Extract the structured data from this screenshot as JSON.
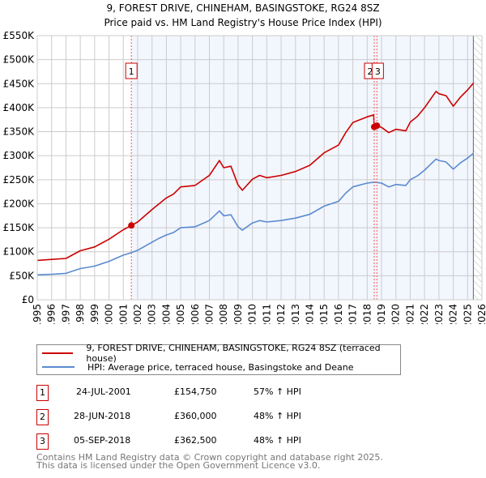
{
  "chart_data": {
    "type": "line",
    "title": "9, FOREST DRIVE, CHINEHAM, BASINGSTOKE, RG24 8SZ",
    "subtitle": "Price paid vs. HM Land Registry's House Price Index (HPI)",
    "xlim": [
      1995,
      2026
    ],
    "ylim": [
      0,
      550000
    ],
    "x_ticks": [
      "1995",
      "1996",
      "1997",
      "1998",
      "1999",
      "2000",
      "2001",
      "2002",
      "2003",
      "2004",
      "2005",
      "2006",
      "2007",
      "2008",
      "2009",
      "2010",
      "2011",
      "2012",
      "2013",
      "2014",
      "2015",
      "2016",
      "2017",
      "2018",
      "2019",
      "2020",
      "2021",
      "2022",
      "2023",
      "2024",
      "2025",
      "2026"
    ],
    "y_ticks": [
      {
        "v": 0,
        "label": "£0"
      },
      {
        "v": 50000,
        "label": "£50K"
      },
      {
        "v": 100000,
        "label": "£100K"
      },
      {
        "v": 150000,
        "label": "£150K"
      },
      {
        "v": 200000,
        "label": "£200K"
      },
      {
        "v": 250000,
        "label": "£250K"
      },
      {
        "v": 300000,
        "label": "£300K"
      },
      {
        "v": 350000,
        "label": "£350K"
      },
      {
        "v": 400000,
        "label": "£400K"
      },
      {
        "v": 450000,
        "label": "£450K"
      },
      {
        "v": 500000,
        "label": "£500K"
      },
      {
        "v": 550000,
        "label": "£550K"
      }
    ],
    "grid": true,
    "series": [
      {
        "name": "9, FOREST DRIVE, CHINEHAM, BASINGSTOKE, RG24 8SZ (terraced house)",
        "color": "#cc0000",
        "x": [
          1995,
          1996,
          1997,
          1998,
          1999,
          2000,
          2001,
          2001.56,
          2002,
          2003,
          2003.5,
          2004,
          2004.5,
          2005,
          2006,
          2007,
          2007.7,
          2008,
          2008.5,
          2009,
          2009.3,
          2010,
          2010.5,
          2011,
          2012,
          2013,
          2014,
          2015,
          2016,
          2016.5,
          2017,
          2018,
          2018.45,
          2018.49,
          2018.68,
          2019,
          2019.5,
          2020,
          2020.7,
          2021,
          2021.5,
          2022,
          2022.8,
          2023,
          2023.5,
          2024,
          2024.5,
          2025,
          2025.4
        ],
        "values": [
          82000,
          84000,
          86000,
          102000,
          110000,
          126000,
          146000,
          154750,
          162000,
          188000,
          200000,
          212000,
          220000,
          235000,
          238000,
          259000,
          290000,
          275000,
          278000,
          239000,
          228000,
          251000,
          259000,
          254000,
          259000,
          267000,
          280000,
          306000,
          322000,
          348000,
          369000,
          381000,
          385000,
          360000,
          362500,
          359000,
          348000,
          355000,
          352000,
          370000,
          382000,
          400000,
          434000,
          429000,
          425000,
          403000,
          422000,
          437000,
          451000
        ]
      },
      {
        "name": "HPI: Average price, terraced house, Basingstoke and Deane",
        "color": "#5b8bd0",
        "x": [
          1995,
          1996,
          1997,
          1998,
          1999,
          2000,
          2001,
          2001.56,
          2002,
          2003,
          2003.5,
          2004,
          2004.5,
          2005,
          2006,
          2007,
          2007.7,
          2008,
          2008.5,
          2009,
          2009.3,
          2010,
          2010.5,
          2011,
          2012,
          2013,
          2014,
          2015,
          2016,
          2016.5,
          2017,
          2018,
          2018.5,
          2019,
          2019.5,
          2020,
          2020.7,
          2021,
          2021.5,
          2022,
          2022.8,
          2023,
          2023.5,
          2024,
          2024.5,
          2025,
          2025.4
        ],
        "values": [
          52000,
          53000,
          55000,
          65000,
          70000,
          80000,
          93000,
          98000,
          103000,
          120000,
          128000,
          135000,
          140000,
          150000,
          152000,
          165000,
          185000,
          175000,
          177000,
          152000,
          145000,
          160000,
          165000,
          162000,
          165000,
          170000,
          178000,
          195000,
          205000,
          222000,
          235000,
          243000,
          245000,
          243000,
          235000,
          240000,
          238000,
          250000,
          258000,
          270000,
          293000,
          290000,
          287000,
          272000,
          285000,
          295000,
          305000
        ]
      }
    ],
    "sales": [
      {
        "id": "1",
        "x": 2001.56,
        "value": 154750,
        "date": "24-JUL-2001",
        "price": "£154,750",
        "hpi": "57% ↑ HPI"
      },
      {
        "id": "2",
        "x": 2018.49,
        "value": 360000,
        "date": "28-JUN-2018",
        "price": "£360,000",
        "hpi": "48% ↑ HPI"
      },
      {
        "id": "3",
        "x": 2018.68,
        "value": 362500,
        "date": "05-SEP-2018",
        "price": "£362,500",
        "hpi": "48% ↑ HPI"
      }
    ],
    "shaded_from": 2001.56,
    "hatched_from": 2025.4,
    "legend_placement": "below"
  },
  "footer": {
    "line1": "Contains HM Land Registry data © Crown copyright and database right 2025.",
    "line2": "This data is licensed under the Open Government Licence v3.0."
  }
}
